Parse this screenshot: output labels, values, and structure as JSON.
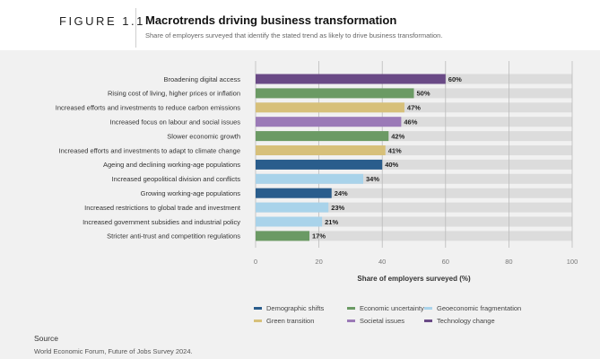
{
  "header": {
    "figure_label": "FIGURE 1.1",
    "title": "Macrotrends driving business transformation",
    "subtitle": "Share of employers surveyed that identify the stated trend as likely to drive business transformation."
  },
  "source": {
    "heading": "Source",
    "text": "World Economic Forum, Future of Jobs Survey 2024."
  },
  "colors": {
    "Demographic shifts": "#2a5d8c",
    "Economic uncertainty": "#6b9a64",
    "Geoeconomic fragmentation": "#a9d3ea",
    "Green transition": "#d7c07a",
    "Societal issues": "#9b7ab7",
    "Technology change": "#6a4a86",
    "track": "#dcdcdc",
    "grid": "#bbbbbb"
  },
  "chart_data": {
    "type": "bar",
    "orientation": "horizontal",
    "xlabel": "Share of employers surveyed (%)",
    "xlim": [
      0,
      100
    ],
    "xticks": [
      0,
      20,
      40,
      60,
      80,
      100
    ],
    "grid": true,
    "value_suffix": "%",
    "categories": [
      "Broadening digital access",
      "Rising cost of living, higher prices or inflation",
      "Increased efforts and investments to reduce carbon emissions",
      "Increased focus on labour and social issues",
      "Slower economic growth",
      "Increased efforts and investments to adapt to climate change",
      "Ageing and declining working-age populations",
      "Increased geopolitical division and conflicts",
      "Growing working-age populations",
      "Increased restrictions to global trade and investment",
      "Increased government subsidies and industrial policy",
      "Stricter anti-trust and competition regulations"
    ],
    "values": [
      60,
      50,
      47,
      46,
      42,
      41,
      40,
      34,
      24,
      23,
      21,
      17
    ],
    "groups": [
      "Technology change",
      "Economic uncertainty",
      "Green transition",
      "Societal issues",
      "Economic uncertainty",
      "Green transition",
      "Demographic shifts",
      "Geoeconomic fragmentation",
      "Demographic shifts",
      "Geoeconomic fragmentation",
      "Geoeconomic fragmentation",
      "Economic uncertainty"
    ],
    "legend": {
      "placement": "bottom",
      "rows": [
        [
          "Demographic shifts",
          "Economic uncertainty",
          "Geoeconomic fragmentation"
        ],
        [
          "Green transition",
          "Societal issues",
          "Technology change"
        ]
      ]
    }
  }
}
